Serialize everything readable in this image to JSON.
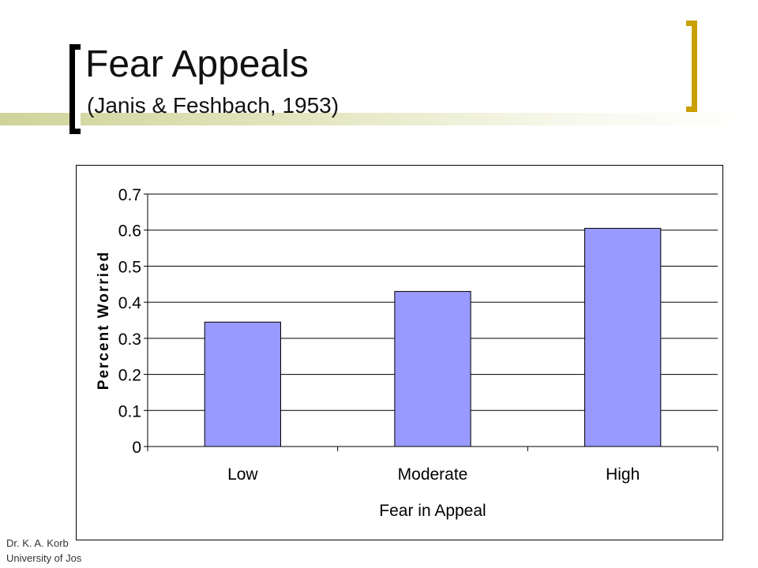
{
  "slide": {
    "title": "Fear Appeals",
    "subtitle": "(Janis & Feshbach, 1953)",
    "footer_line1": "Dr. K. A. Korb",
    "footer_line2": "University of Jos",
    "accent_color": "#c9a000",
    "stripe_color": "#cfd39a"
  },
  "chart_data": {
    "type": "bar",
    "categories": [
      "Low",
      "Moderate",
      "High"
    ],
    "values": [
      0.345,
      0.43,
      0.605
    ],
    "title": "",
    "xlabel": "Fear in Appeal",
    "ylabel": "Percent Worried",
    "ylim": [
      0,
      0.7
    ],
    "yticks": [
      "0",
      "0.1",
      "0.2",
      "0.3",
      "0.4",
      "0.5",
      "0.6",
      "0.7"
    ],
    "grid": true,
    "legend": "none",
    "bar_color": "#9999ff"
  }
}
